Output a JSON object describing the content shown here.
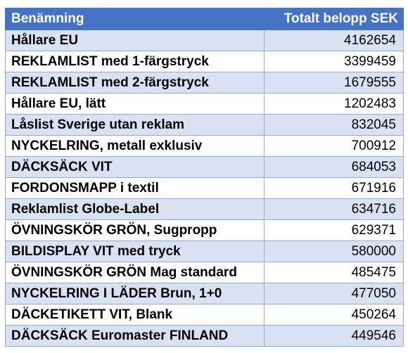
{
  "table": {
    "headers": {
      "name": "Benämning",
      "amount": "Totalt belopp SEK"
    },
    "rows": [
      {
        "name": "Hållare EU",
        "amount": "4162654"
      },
      {
        "name": "REKLAMLIST med 1-färgstryck",
        "amount": "3399459"
      },
      {
        "name": "REKLAMLIST med 2-färgstryck",
        "amount": "1679555"
      },
      {
        "name": "Hållare EU, lätt",
        "amount": "1202483"
      },
      {
        "name": "Låslist Sverige utan reklam",
        "amount": "832045"
      },
      {
        "name": "NYCKELRING, metall exklusiv",
        "amount": "700912"
      },
      {
        "name": "DÄCKSÄCK VIT",
        "amount": "684053"
      },
      {
        "name": "FORDONSMAPP i textil",
        "amount": "671916"
      },
      {
        "name": "Reklamlist Globe-Label",
        "amount": "634716"
      },
      {
        "name": "ÖVNINGSKÖR GRÖN, Sugpropp",
        "amount": "629371"
      },
      {
        "name": "BILDISPLAY VIT med tryck",
        "amount": "580000"
      },
      {
        "name": "ÖVNINGSKÖR GRÖN Mag standard",
        "amount": "485475"
      },
      {
        "name": "NYCKELRING I LÄDER Brun, 1+0",
        "amount": "477050"
      },
      {
        "name": "DÄCKETIKETT VIT, Blank",
        "amount": "450264"
      },
      {
        "name": "DÄCKSÄCK Euromaster FINLAND",
        "amount": "449546"
      }
    ]
  },
  "colors": {
    "header_bg": "#4472c4",
    "band_bg": "#d9e2f3",
    "border": "#8eaadb"
  }
}
